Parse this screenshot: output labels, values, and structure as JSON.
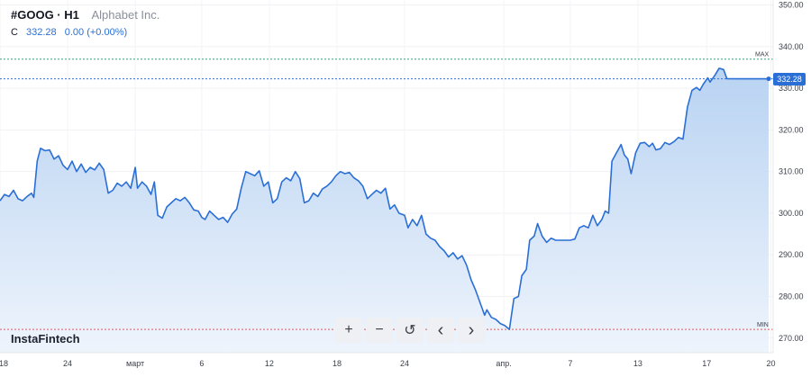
{
  "header": {
    "ticker": "#GOOG · H1",
    "company": "Alphabet Inc.",
    "ohlc_label": "C",
    "close_value": "332.28",
    "change": "0.00 (+0.00%)"
  },
  "brand": "InstaFintech",
  "toolbar": {
    "zoom_in": "+",
    "zoom_out": "−",
    "reset": "↺",
    "prev": "‹",
    "next": "›"
  },
  "price_tag": "332.28",
  "colors": {
    "line": "#2a6fd6",
    "fill_top": "#b9d3f2",
    "fill_bottom": "#eef4fc",
    "max_line": "#3aa57a",
    "min_line": "#e05a5a",
    "price_line": "#2a6fd6"
  },
  "chart_data": {
    "type": "area",
    "y_ticks": [
      "350.00",
      "340.00",
      "330.00",
      "320.00",
      "310.00",
      "300.00",
      "290.00",
      "280.00",
      "270.00"
    ],
    "y_tick_values": [
      350,
      340,
      330,
      320,
      310,
      300,
      290,
      280,
      270
    ],
    "ylim": [
      266.5,
      351.2
    ],
    "x_ticks": [
      {
        "label": "18",
        "t": 0
      },
      {
        "label": "24",
        "t": 6
      },
      {
        "label": "март",
        "t": 12
      },
      {
        "label": "6",
        "t": 17.9
      },
      {
        "label": "12",
        "t": 23.9
      },
      {
        "label": "18",
        "t": 29.9
      },
      {
        "label": "24",
        "t": 35.9
      },
      {
        "label": "апр.",
        "t": 44.7
      },
      {
        "label": "7",
        "t": 50.6
      },
      {
        "label": "13",
        "t": 56.6
      },
      {
        "label": "17",
        "t": 62.7
      },
      {
        "label": "20",
        "t": 68.4
      }
    ],
    "x_range": [
      0,
      68.6
    ],
    "max": {
      "label": "MAX",
      "value": 337.0
    },
    "min": {
      "label": "MIN",
      "value": 272.1
    },
    "last": {
      "value": 332.28
    },
    "points": [
      [
        0,
        303.0
      ],
      [
        0.4,
        304.5
      ],
      [
        0.8,
        304.0
      ],
      [
        1.2,
        305.5
      ],
      [
        1.6,
        303.5
      ],
      [
        2.0,
        303.0
      ],
      [
        2.4,
        304.0
      ],
      [
        2.8,
        304.8
      ],
      [
        3.0,
        303.8
      ],
      [
        3.3,
        312.5
      ],
      [
        3.6,
        315.6
      ],
      [
        4.0,
        315.0
      ],
      [
        4.4,
        315.2
      ],
      [
        4.8,
        313.0
      ],
      [
        5.2,
        313.8
      ],
      [
        5.6,
        311.5
      ],
      [
        6.0,
        310.5
      ],
      [
        6.4,
        312.5
      ],
      [
        6.8,
        310.0
      ],
      [
        7.2,
        311.8
      ],
      [
        7.6,
        309.8
      ],
      [
        8.0,
        311.0
      ],
      [
        8.4,
        310.4
      ],
      [
        8.8,
        312.0
      ],
      [
        9.2,
        310.5
      ],
      [
        9.6,
        304.8
      ],
      [
        10.0,
        305.5
      ],
      [
        10.4,
        307.2
      ],
      [
        10.8,
        306.5
      ],
      [
        11.2,
        307.5
      ],
      [
        11.6,
        306.0
      ],
      [
        12.0,
        311.0
      ],
      [
        12.2,
        306.0
      ],
      [
        12.6,
        307.5
      ],
      [
        13.0,
        306.5
      ],
      [
        13.4,
        304.5
      ],
      [
        13.7,
        307.5
      ],
      [
        14.0,
        299.5
      ],
      [
        14.4,
        298.8
      ],
      [
        14.8,
        301.5
      ],
      [
        15.2,
        302.5
      ],
      [
        15.6,
        303.5
      ],
      [
        16.0,
        303.0
      ],
      [
        16.4,
        303.8
      ],
      [
        16.8,
        302.5
      ],
      [
        17.2,
        300.8
      ],
      [
        17.6,
        300.5
      ],
      [
        17.9,
        299.0
      ],
      [
        18.2,
        298.5
      ],
      [
        18.6,
        300.5
      ],
      [
        19.0,
        299.5
      ],
      [
        19.4,
        298.5
      ],
      [
        19.8,
        299.0
      ],
      [
        20.2,
        297.8
      ],
      [
        20.6,
        299.8
      ],
      [
        21.0,
        301.0
      ],
      [
        21.4,
        306.0
      ],
      [
        21.8,
        310.0
      ],
      [
        22.2,
        309.5
      ],
      [
        22.6,
        309.0
      ],
      [
        23.0,
        310.2
      ],
      [
        23.4,
        306.5
      ],
      [
        23.8,
        307.5
      ],
      [
        24.2,
        302.5
      ],
      [
        24.6,
        303.5
      ],
      [
        25.0,
        307.5
      ],
      [
        25.4,
        308.5
      ],
      [
        25.8,
        307.8
      ],
      [
        26.2,
        310.0
      ],
      [
        26.6,
        308.3
      ],
      [
        27.0,
        302.5
      ],
      [
        27.4,
        303.0
      ],
      [
        27.8,
        304.8
      ],
      [
        28.2,
        304.0
      ],
      [
        28.6,
        305.8
      ],
      [
        29.0,
        306.5
      ],
      [
        29.4,
        307.5
      ],
      [
        29.8,
        309.0
      ],
      [
        30.2,
        310.0
      ],
      [
        30.6,
        309.5
      ],
      [
        31.0,
        309.8
      ],
      [
        31.4,
        308.5
      ],
      [
        31.8,
        307.8
      ],
      [
        32.2,
        306.5
      ],
      [
        32.6,
        303.5
      ],
      [
        33.0,
        304.5
      ],
      [
        33.4,
        305.5
      ],
      [
        33.8,
        304.8
      ],
      [
        34.2,
        306.0
      ],
      [
        34.6,
        301.0
      ],
      [
        35.0,
        302.0
      ],
      [
        35.4,
        300.0
      ],
      [
        35.9,
        299.5
      ],
      [
        36.2,
        296.5
      ],
      [
        36.6,
        298.5
      ],
      [
        37.0,
        297.0
      ],
      [
        37.4,
        299.5
      ],
      [
        37.8,
        295.0
      ],
      [
        38.2,
        294.0
      ],
      [
        38.6,
        293.5
      ],
      [
        39.0,
        292.0
      ],
      [
        39.4,
        291.0
      ],
      [
        39.8,
        289.5
      ],
      [
        40.2,
        290.5
      ],
      [
        40.6,
        289.0
      ],
      [
        41.0,
        289.8
      ],
      [
        41.4,
        287.5
      ],
      [
        41.8,
        284.0
      ],
      [
        42.2,
        281.5
      ],
      [
        42.6,
        278.5
      ],
      [
        43.0,
        275.5
      ],
      [
        43.2,
        276.8
      ],
      [
        43.6,
        275.0
      ],
      [
        44.0,
        274.5
      ],
      [
        44.4,
        273.5
      ],
      [
        44.8,
        273.0
      ],
      [
        45.2,
        272.1
      ],
      [
        45.6,
        279.5
      ],
      [
        46.0,
        280.0
      ],
      [
        46.3,
        285.0
      ],
      [
        46.7,
        286.5
      ],
      [
        47.0,
        293.5
      ],
      [
        47.4,
        294.5
      ],
      [
        47.7,
        297.5
      ],
      [
        48.1,
        294.5
      ],
      [
        48.5,
        293.0
      ],
      [
        48.9,
        294.0
      ],
      [
        49.3,
        293.5
      ],
      [
        50.0,
        293.5
      ],
      [
        50.6,
        293.5
      ],
      [
        51.0,
        293.8
      ],
      [
        51.4,
        296.5
      ],
      [
        51.8,
        297.0
      ],
      [
        52.2,
        296.5
      ],
      [
        52.6,
        299.5
      ],
      [
        53.0,
        297.0
      ],
      [
        53.4,
        298.5
      ],
      [
        53.7,
        300.5
      ],
      [
        54.0,
        300.0
      ],
      [
        54.3,
        312.5
      ],
      [
        54.7,
        314.5
      ],
      [
        55.1,
        316.5
      ],
      [
        55.4,
        314.0
      ],
      [
        55.7,
        313.0
      ],
      [
        56.0,
        309.5
      ],
      [
        56.4,
        314.5
      ],
      [
        56.8,
        316.8
      ],
      [
        57.2,
        317.0
      ],
      [
        57.6,
        316.0
      ],
      [
        57.9,
        316.8
      ],
      [
        58.2,
        315.2
      ],
      [
        58.6,
        315.5
      ],
      [
        59.0,
        317.0
      ],
      [
        59.4,
        316.5
      ],
      [
        59.8,
        317.2
      ],
      [
        60.2,
        318.2
      ],
      [
        60.6,
        317.8
      ],
      [
        61.0,
        325.5
      ],
      [
        61.4,
        329.5
      ],
      [
        61.8,
        330.2
      ],
      [
        62.1,
        329.5
      ],
      [
        62.4,
        331.0
      ],
      [
        62.8,
        332.5
      ],
      [
        63.0,
        331.5
      ],
      [
        63.4,
        333.0
      ],
      [
        63.8,
        334.8
      ],
      [
        64.2,
        334.5
      ],
      [
        64.5,
        332.3
      ],
      [
        66.0,
        332.28
      ],
      [
        68.2,
        332.28
      ]
    ]
  }
}
